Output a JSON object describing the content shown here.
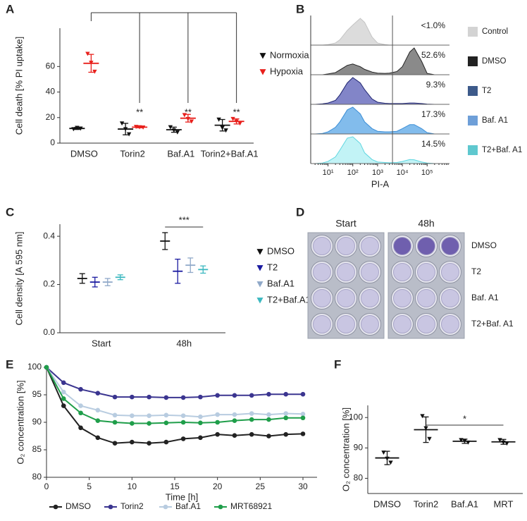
{
  "chart_data": [
    {
      "panel_label": "A",
      "type": "dotplot",
      "ylabel": "Cell death [% PI uptake]",
      "categories": [
        "DMSO",
        "Torin2",
        "Baf.A1",
        "Torin2+Baf.A1"
      ],
      "ylim": [
        0,
        90
      ],
      "yticks": [
        0,
        20,
        40,
        60
      ],
      "series": [
        {
          "name": "Normoxia",
          "color": "#111111",
          "values": [
            11.5,
            11,
            10.5,
            14
          ],
          "errors": [
            0.8,
            4.5,
            2,
            4.5
          ],
          "points": [
            [
              11,
              12,
              11.5
            ],
            [
              15.5,
              11,
              7
            ],
            [
              12.5,
              10,
              8.5
            ],
            [
              18.5,
              12,
              10
            ]
          ]
        },
        {
          "name": "Hypoxia",
          "color": "#e8201c",
          "values": [
            62.5,
            12.5,
            19.5,
            17
          ],
          "errors": [
            7,
            0.5,
            3,
            2
          ],
          "points": [
            [
              70,
              63,
              56
            ],
            [
              12.8,
              12.5,
              12.3
            ],
            [
              22,
              19,
              17
            ],
            [
              19,
              17,
              15.5
            ]
          ]
        }
      ],
      "annotations": [
        "**",
        "**",
        "**"
      ]
    },
    {
      "panel_label": "B",
      "type": "histogram",
      "xlabel": "PI-A",
      "log_x": true,
      "xlim": [
        2,
        800000
      ],
      "xticks": [
        {
          "value": 10,
          "label": "10¹"
        },
        {
          "value": 100,
          "label": "10²"
        },
        {
          "value": 1000,
          "label": "10³"
        },
        {
          "value": 10000,
          "label": "10⁴"
        },
        {
          "value": 100000,
          "label": "10⁵"
        }
      ],
      "gate": 4000,
      "x": [
        3,
        6,
        10,
        20,
        30,
        60,
        100,
        200,
        300,
        600,
        1000,
        2000,
        3000,
        6000,
        10000,
        20000,
        30000,
        60000,
        100000,
        200000,
        300000
      ],
      "series": [
        {
          "name": "Control",
          "color": "#d3d3d3",
          "fill": "#dcdcdc",
          "line_color": "#c4c4c4",
          "values": [
            0,
            0,
            2,
            8,
            20,
            55,
            75,
            100,
            85,
            30,
            8,
            2,
            0,
            0,
            0,
            0,
            0,
            0,
            0,
            0,
            0
          ]
        },
        {
          "name": "DMSO",
          "color": "#222222",
          "fill": "#8a8a8a",
          "line_color": "#222222",
          "values": [
            0,
            0,
            3,
            8,
            18,
            35,
            40,
            30,
            20,
            10,
            6,
            5,
            6,
            12,
            30,
            85,
            100,
            50,
            5,
            0,
            0
          ]
        },
        {
          "name": "T2",
          "color": "#3d5a8a",
          "fill": "#8285c8",
          "line_color": "#1e2470",
          "values": [
            0,
            2,
            5,
            15,
            35,
            80,
            100,
            80,
            55,
            20,
            8,
            4,
            3,
            3,
            3,
            5,
            5,
            3,
            1,
            0,
            0
          ]
        },
        {
          "name": "Baf. A1",
          "color": "#6e9fd8",
          "fill": "#82bcec",
          "line_color": "#3d8fd6",
          "values": [
            0,
            2,
            8,
            25,
            45,
            90,
            100,
            75,
            45,
            20,
            10,
            8,
            8,
            10,
            20,
            35,
            35,
            20,
            5,
            0,
            0
          ]
        },
        {
          "name": "T2+Baf. A1",
          "color": "#5fc8cf",
          "fill": "#c2f3f6",
          "line_color": "#5fd6e0",
          "values": [
            0,
            2,
            8,
            25,
            50,
            95,
            100,
            75,
            40,
            15,
            6,
            4,
            3,
            4,
            8,
            15,
            14,
            6,
            2,
            0,
            0
          ]
        }
      ],
      "annotations": [
        "<1.0%",
        "52.6%",
        "9.3%",
        "17.3%",
        "14.5%"
      ]
    },
    {
      "panel_label": "C",
      "type": "dotplot",
      "ylabel": "Cell density [A 595 nm]",
      "categories": [
        "Start",
        "48h"
      ],
      "ylim": [
        0,
        0.45
      ],
      "yticks": [
        {
          "value": 0,
          "label": "0.0"
        },
        0.2,
        0.4
      ],
      "series": [
        {
          "name": "DMSO",
          "color": "#111111",
          "values": [
            0.225,
            0.38
          ],
          "errors": [
            0.02,
            0.035
          ]
        },
        {
          "name": "T2",
          "color": "#1a1aa0",
          "values": [
            0.21,
            0.255
          ],
          "errors": [
            0.02,
            0.05
          ]
        },
        {
          "name": "Baf.A1",
          "color": "#8fa8c8",
          "values": [
            0.21,
            0.28
          ],
          "errors": [
            0.015,
            0.03
          ]
        },
        {
          "name": "T2+Baf.A1",
          "color": "#3bb8c0",
          "values": [
            0.23,
            0.262
          ],
          "errors": [
            0.01,
            0.015
          ]
        }
      ],
      "annotations": [
        "***"
      ]
    },
    {
      "panel_label": "E",
      "type": "line",
      "xlabel": "Time [h]",
      "ylabel": "O₂ concentration [%]",
      "x": [
        0,
        2,
        4,
        6,
        8,
        10,
        12,
        14,
        16,
        18,
        20,
        22,
        24,
        26,
        28,
        30
      ],
      "xlim": [
        0,
        30
      ],
      "xticks": [
        0,
        5,
        10,
        15,
        20,
        25,
        30
      ],
      "ylim": [
        80,
        100
      ],
      "yticks": [
        80,
        85,
        90,
        95,
        100
      ],
      "series": [
        {
          "name": "DMSO",
          "color": "#222222",
          "values": [
            100,
            93,
            89,
            87.2,
            86.2,
            86.4,
            86.2,
            86.4,
            87,
            87.2,
            87.8,
            87.6,
            87.8,
            87.5,
            87.8,
            87.9
          ]
        },
        {
          "name": "Torin2",
          "color": "#3b3590",
          "values": [
            100,
            97.2,
            96,
            95.3,
            94.6,
            94.6,
            94.6,
            94.5,
            94.5,
            94.6,
            94.9,
            94.9,
            94.9,
            95.1,
            95.1,
            95.1
          ]
        },
        {
          "name": "Baf.A1",
          "color": "#b8cce0",
          "values": [
            100,
            95.5,
            93,
            92.2,
            91.3,
            91.2,
            91.2,
            91.3,
            91.2,
            91,
            91.4,
            91.4,
            91.6,
            91.4,
            91.6,
            91.5
          ]
        },
        {
          "name": "MRT68921",
          "color": "#1f9e4a",
          "values": [
            100,
            94.3,
            91.7,
            90.3,
            90,
            89.8,
            89.8,
            89.9,
            90,
            89.9,
            90,
            90.3,
            90.5,
            90.5,
            90.8,
            90.8
          ]
        }
      ]
    },
    {
      "panel_label": "F",
      "type": "dotplot",
      "ylabel": "O₂ concentration [%]",
      "categories": [
        "DMSO",
        "Torin2",
        "Baf.A1",
        "MRT"
      ],
      "ylim": [
        75,
        104
      ],
      "yticks": [
        80,
        90,
        100
      ],
      "color": "#111111",
      "values": [
        86.7,
        96,
        92.2,
        92
      ],
      "errors": [
        2.2,
        4.2,
        0.7,
        0.8
      ],
      "points": [
        [
          88.5,
          86.5,
          85.2
        ],
        [
          100.5,
          96.5,
          93
        ],
        [
          92.6,
          92.3,
          91.8
        ],
        [
          92.6,
          91.8,
          91.5
        ]
      ],
      "annotations": [
        "*"
      ]
    }
  ],
  "figure_d": {
    "panel_label": "D",
    "columns": [
      "Start",
      "48h"
    ],
    "rows": [
      "DMSO",
      "T2",
      "Baf. A1",
      "T2+Baf. A1"
    ]
  }
}
